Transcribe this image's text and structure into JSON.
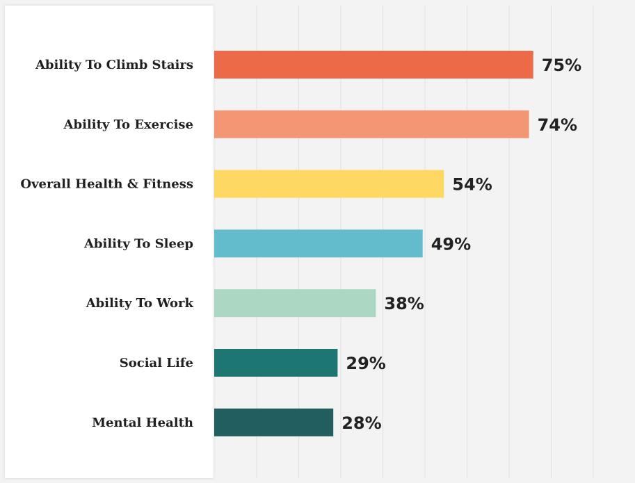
{
  "chart_data": {
    "type": "bar",
    "orientation": "horizontal",
    "categories": [
      "Ability To Climb Stairs",
      "Ability To Exercise",
      "Overall Health & Fitness",
      "Ability To Sleep",
      "Ability To Work",
      "Social Life",
      "Mental Health"
    ],
    "values": [
      75,
      74,
      54,
      49,
      38,
      29,
      28
    ],
    "value_labels": [
      "75%",
      "74%",
      "54%",
      "49%",
      "38%",
      "29%",
      "28%"
    ],
    "bar_colors": [
      "#ec6a48",
      "#f29674",
      "#fdd963",
      "#62bccc",
      "#acd8c3",
      "#1d7672",
      "#225d5f"
    ],
    "unit": "%",
    "title": "",
    "xlabel": "",
    "ylabel": "",
    "xlim": [
      0,
      100
    ],
    "grid": true,
    "legend": "none",
    "background_color": "#f3f3f3",
    "label_panel_color": "#ffffff",
    "gridline_color": "#e0e0e0"
  }
}
